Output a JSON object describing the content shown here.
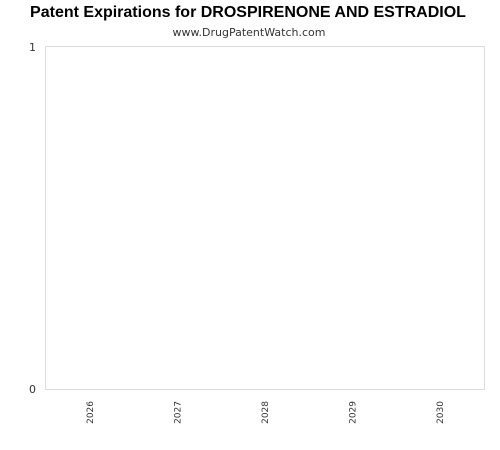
{
  "chart_data": {
    "type": "bar",
    "title": "Patent Expirations for DROSPIRENONE AND ESTRADIOL",
    "subtitle": "www.DrugPatentWatch.com",
    "categories": [
      "2026",
      "2027",
      "2028",
      "2029",
      "2030"
    ],
    "values": [
      0,
      0,
      0,
      0,
      0
    ],
    "xlabel": "",
    "ylabel": "",
    "ylim": [
      0,
      1
    ],
    "yticks": [
      "0",
      "1"
    ],
    "grid": false,
    "legend": "none",
    "colors": {
      "plot_border": "#dddddd",
      "bar": "#4a7ebb"
    }
  }
}
